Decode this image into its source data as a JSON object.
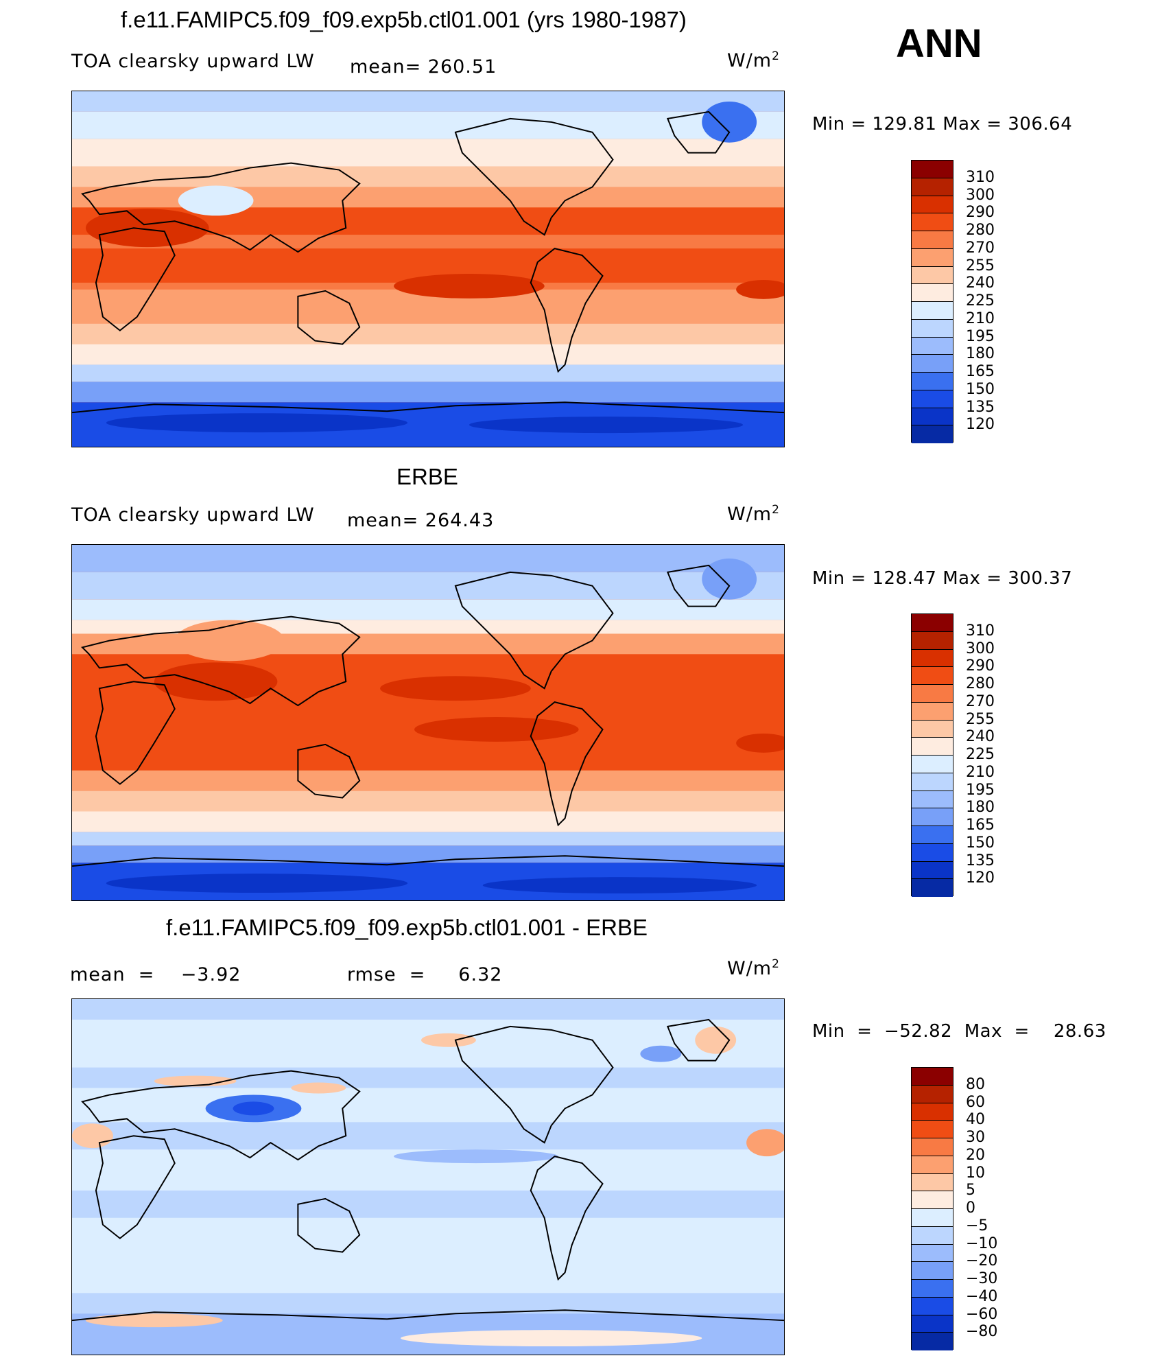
{
  "season": "ANN",
  "coast_color": "#000000",
  "abs_colors": [
    "#8b0000",
    "#b52200",
    "#d93000",
    "#f04d14",
    "#f87a44",
    "#fca070",
    "#fdc8a6",
    "#feece0",
    "#dceeff",
    "#bcd6fe",
    "#9cbcfc",
    "#78a0f8",
    "#3a70f0",
    "#1a4ce6",
    "#0a34c8",
    "#062aa4",
    "#001c7a"
  ],
  "diff_colors": [
    "#8b0000",
    "#b52200",
    "#d93000",
    "#f04d14",
    "#f87a44",
    "#fca070",
    "#fdc8a6",
    "#feece0",
    "#dceeff",
    "#bcd6fe",
    "#9cbcfc",
    "#78a0f8",
    "#3a70f0",
    "#1a4ce6",
    "#0a34c8",
    "#062aa4",
    "#001c7a"
  ],
  "panels": [
    {
      "title": "f.e11.FAMIPC5.f09_f09.exp5b.ctl01.001 (yrs 1980-1987)",
      "left_text": "TOA clearsky upward LW",
      "mean_text": "mean= 260.51",
      "units_base": "W/m",
      "units_exp": "2",
      "minmax": "Min  =  129.81  Max  =  306.64",
      "levels": [
        "310",
        "300",
        "290",
        "280",
        "270",
        "255",
        "240",
        "225",
        "210",
        "195",
        "180",
        "165",
        "150",
        "135",
        "120"
      ]
    },
    {
      "title": "ERBE",
      "left_text": "TOA clearsky upward LW",
      "mean_text": "mean= 264.43",
      "units_base": "W/m",
      "units_exp": "2",
      "minmax": "Min  =  128.47  Max  =  300.37",
      "levels": [
        "310",
        "300",
        "290",
        "280",
        "270",
        "255",
        "240",
        "225",
        "210",
        "195",
        "180",
        "165",
        "150",
        "135",
        "120"
      ]
    },
    {
      "title": "f.e11.FAMIPC5.f09_f09.exp5b.ctl01.001 - ERBE",
      "left_text": "mean  =    −3.92",
      "mean_text": "rmse  =     6.32",
      "units_base": "W/m",
      "units_exp": "2",
      "minmax": "Min  =  −52.82  Max  =    28.63",
      "levels": [
        "80",
        "60",
        "40",
        "30",
        "20",
        "10",
        "5",
        "0",
        "−5",
        "−10",
        "−20",
        "−30",
        "−40",
        "−60",
        "−80"
      ]
    }
  ]
}
